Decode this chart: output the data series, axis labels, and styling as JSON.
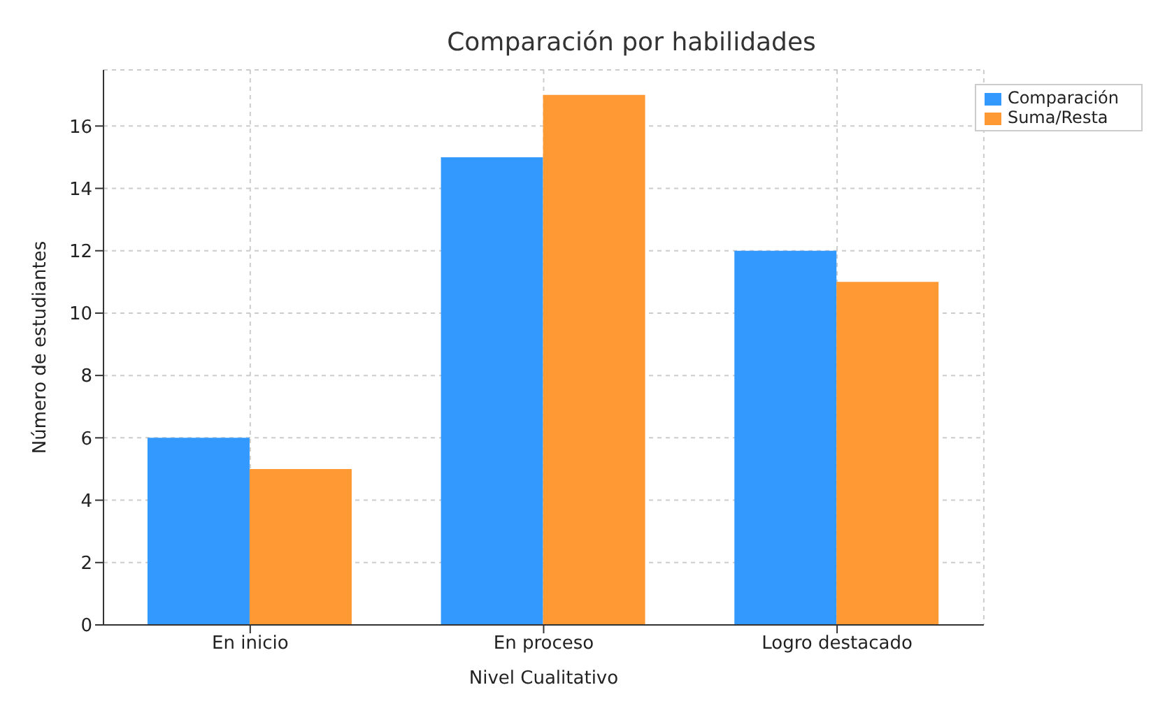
{
  "chart_data": {
    "type": "bar",
    "title": "Comparación por habilidades",
    "xlabel": "Nivel Cualitativo",
    "ylabel": "Número de estudiantes",
    "categories": [
      "En inicio",
      "En proceso",
      "Logro destacado"
    ],
    "series": [
      {
        "name": "Comparación",
        "color": "#3399ff",
        "values": [
          6,
          15,
          12
        ]
      },
      {
        "name": "Suma/Resta",
        "color": "#ff9933",
        "values": [
          5,
          17,
          11
        ]
      }
    ],
    "ylim": [
      0,
      17.8
    ],
    "yticks": [
      0,
      2,
      4,
      6,
      8,
      10,
      12,
      14,
      16
    ],
    "grid": true,
    "legend": "top right"
  }
}
